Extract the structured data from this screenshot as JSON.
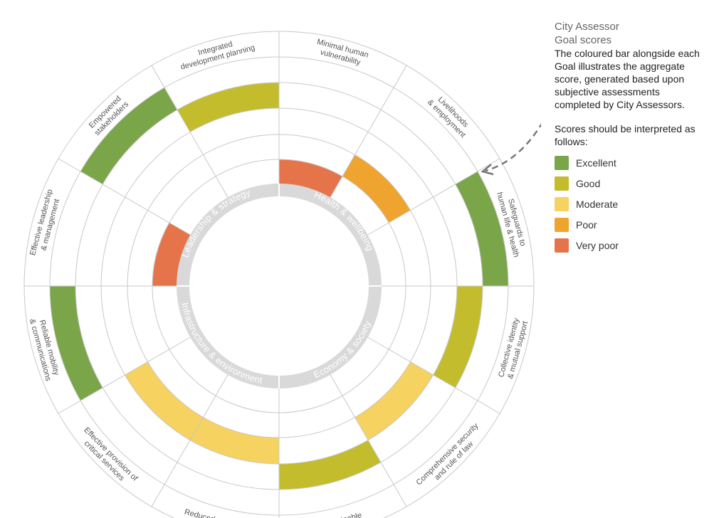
{
  "legend": {
    "title": "City Assessor",
    "subtitle": "Goal scores",
    "description": "The coloured bar alongside each Goal illustrates the aggregate score, generated based upon subjective assessments completed by City Assessors.",
    "interpretation": "Scores should be interpreted as follows:",
    "items": [
      {
        "label": "Excellent",
        "color": "#7aa548"
      },
      {
        "label": "Good",
        "color": "#c3bd2e"
      },
      {
        "label": "Moderate",
        "color": "#f6d260"
      },
      {
        "label": "Poor",
        "color": "#efa430"
      },
      {
        "label": "Very poor",
        "color": "#e6744a"
      }
    ]
  },
  "categories": [
    "Health & wellbeing",
    "Economy & society",
    "Infrastructure & environment",
    "Leadership & strategy"
  ],
  "goals": [
    {
      "label": [
        "Minimal human",
        "vulnerability"
      ],
      "score": 1
    },
    {
      "label": [
        "Livelihoods",
        "& employment"
      ],
      "score": 2
    },
    {
      "label": [
        "Safeguards to",
        "human life & health"
      ],
      "score": 5
    },
    {
      "label": [
        "Collective identity",
        "& mutual support"
      ],
      "score": 4
    },
    {
      "label": [
        "Comprehensive security",
        "and rule of law"
      ],
      "score": 3
    },
    {
      "label": [
        "Sustainable"
      ],
      "score": 4
    },
    {
      "label": [
        "Reduced exposure"
      ],
      "score": 3
    },
    {
      "label": [
        "Effective provision of",
        "critical services"
      ],
      "score": 3
    },
    {
      "label": [
        "Reliable mobility",
        "& communications"
      ],
      "score": 5
    },
    {
      "label": [
        "Effective leadership",
        "& management"
      ],
      "score": 1
    },
    {
      "label": [
        "Empowered",
        "stakeholders"
      ],
      "score": 5
    },
    {
      "label": [
        "Integrated",
        "development planning"
      ],
      "score": 4
    }
  ]
}
